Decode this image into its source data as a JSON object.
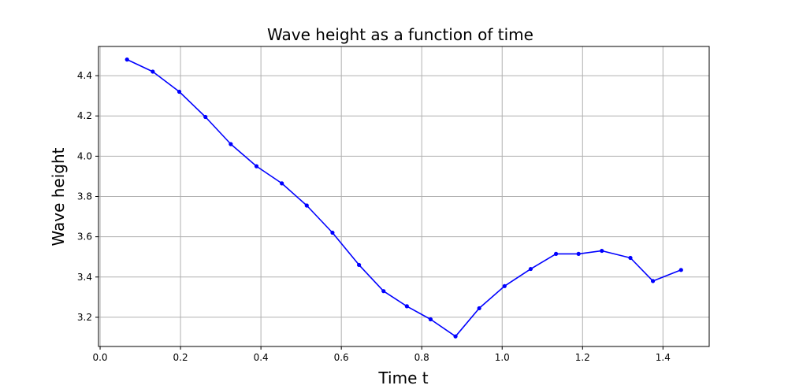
{
  "chart_data": {
    "type": "line",
    "title": "Wave height as a function of time",
    "xlabel": "Time t",
    "ylabel": "Wave height",
    "xlim": [
      -0.004,
      1.515
    ],
    "ylim": [
      3.055,
      4.545
    ],
    "xticks": [
      0.0,
      0.2,
      0.4,
      0.6,
      0.8,
      1.0,
      1.2,
      1.4
    ],
    "xtick_labels": [
      "0.0",
      "0.2",
      "0.4",
      "0.6",
      "0.8",
      "1.0",
      "1.2",
      "1.4"
    ],
    "yticks": [
      3.2,
      3.4,
      3.6,
      3.8,
      4.0,
      4.2,
      4.4
    ],
    "ytick_labels": [
      "3.2",
      "3.4",
      "3.6",
      "3.8",
      "4.0",
      "4.2",
      "4.4"
    ],
    "grid": true,
    "color": "#0000ff",
    "series": [
      {
        "x": [
          0.067,
          0.131,
          0.197,
          0.262,
          0.325,
          0.389,
          0.452,
          0.514,
          0.578,
          0.644,
          0.705,
          0.763,
          0.822,
          0.884,
          0.943,
          1.006,
          1.071,
          1.134,
          1.19,
          1.248,
          1.319,
          1.375,
          1.445
        ],
        "y": [
          4.48,
          4.42,
          4.32,
          4.195,
          4.06,
          3.95,
          3.865,
          3.755,
          3.62,
          3.46,
          3.33,
          3.255,
          3.19,
          3.105,
          3.245,
          3.355,
          3.44,
          3.515,
          3.515,
          3.53,
          3.495,
          3.38,
          3.435
        ]
      }
    ]
  }
}
